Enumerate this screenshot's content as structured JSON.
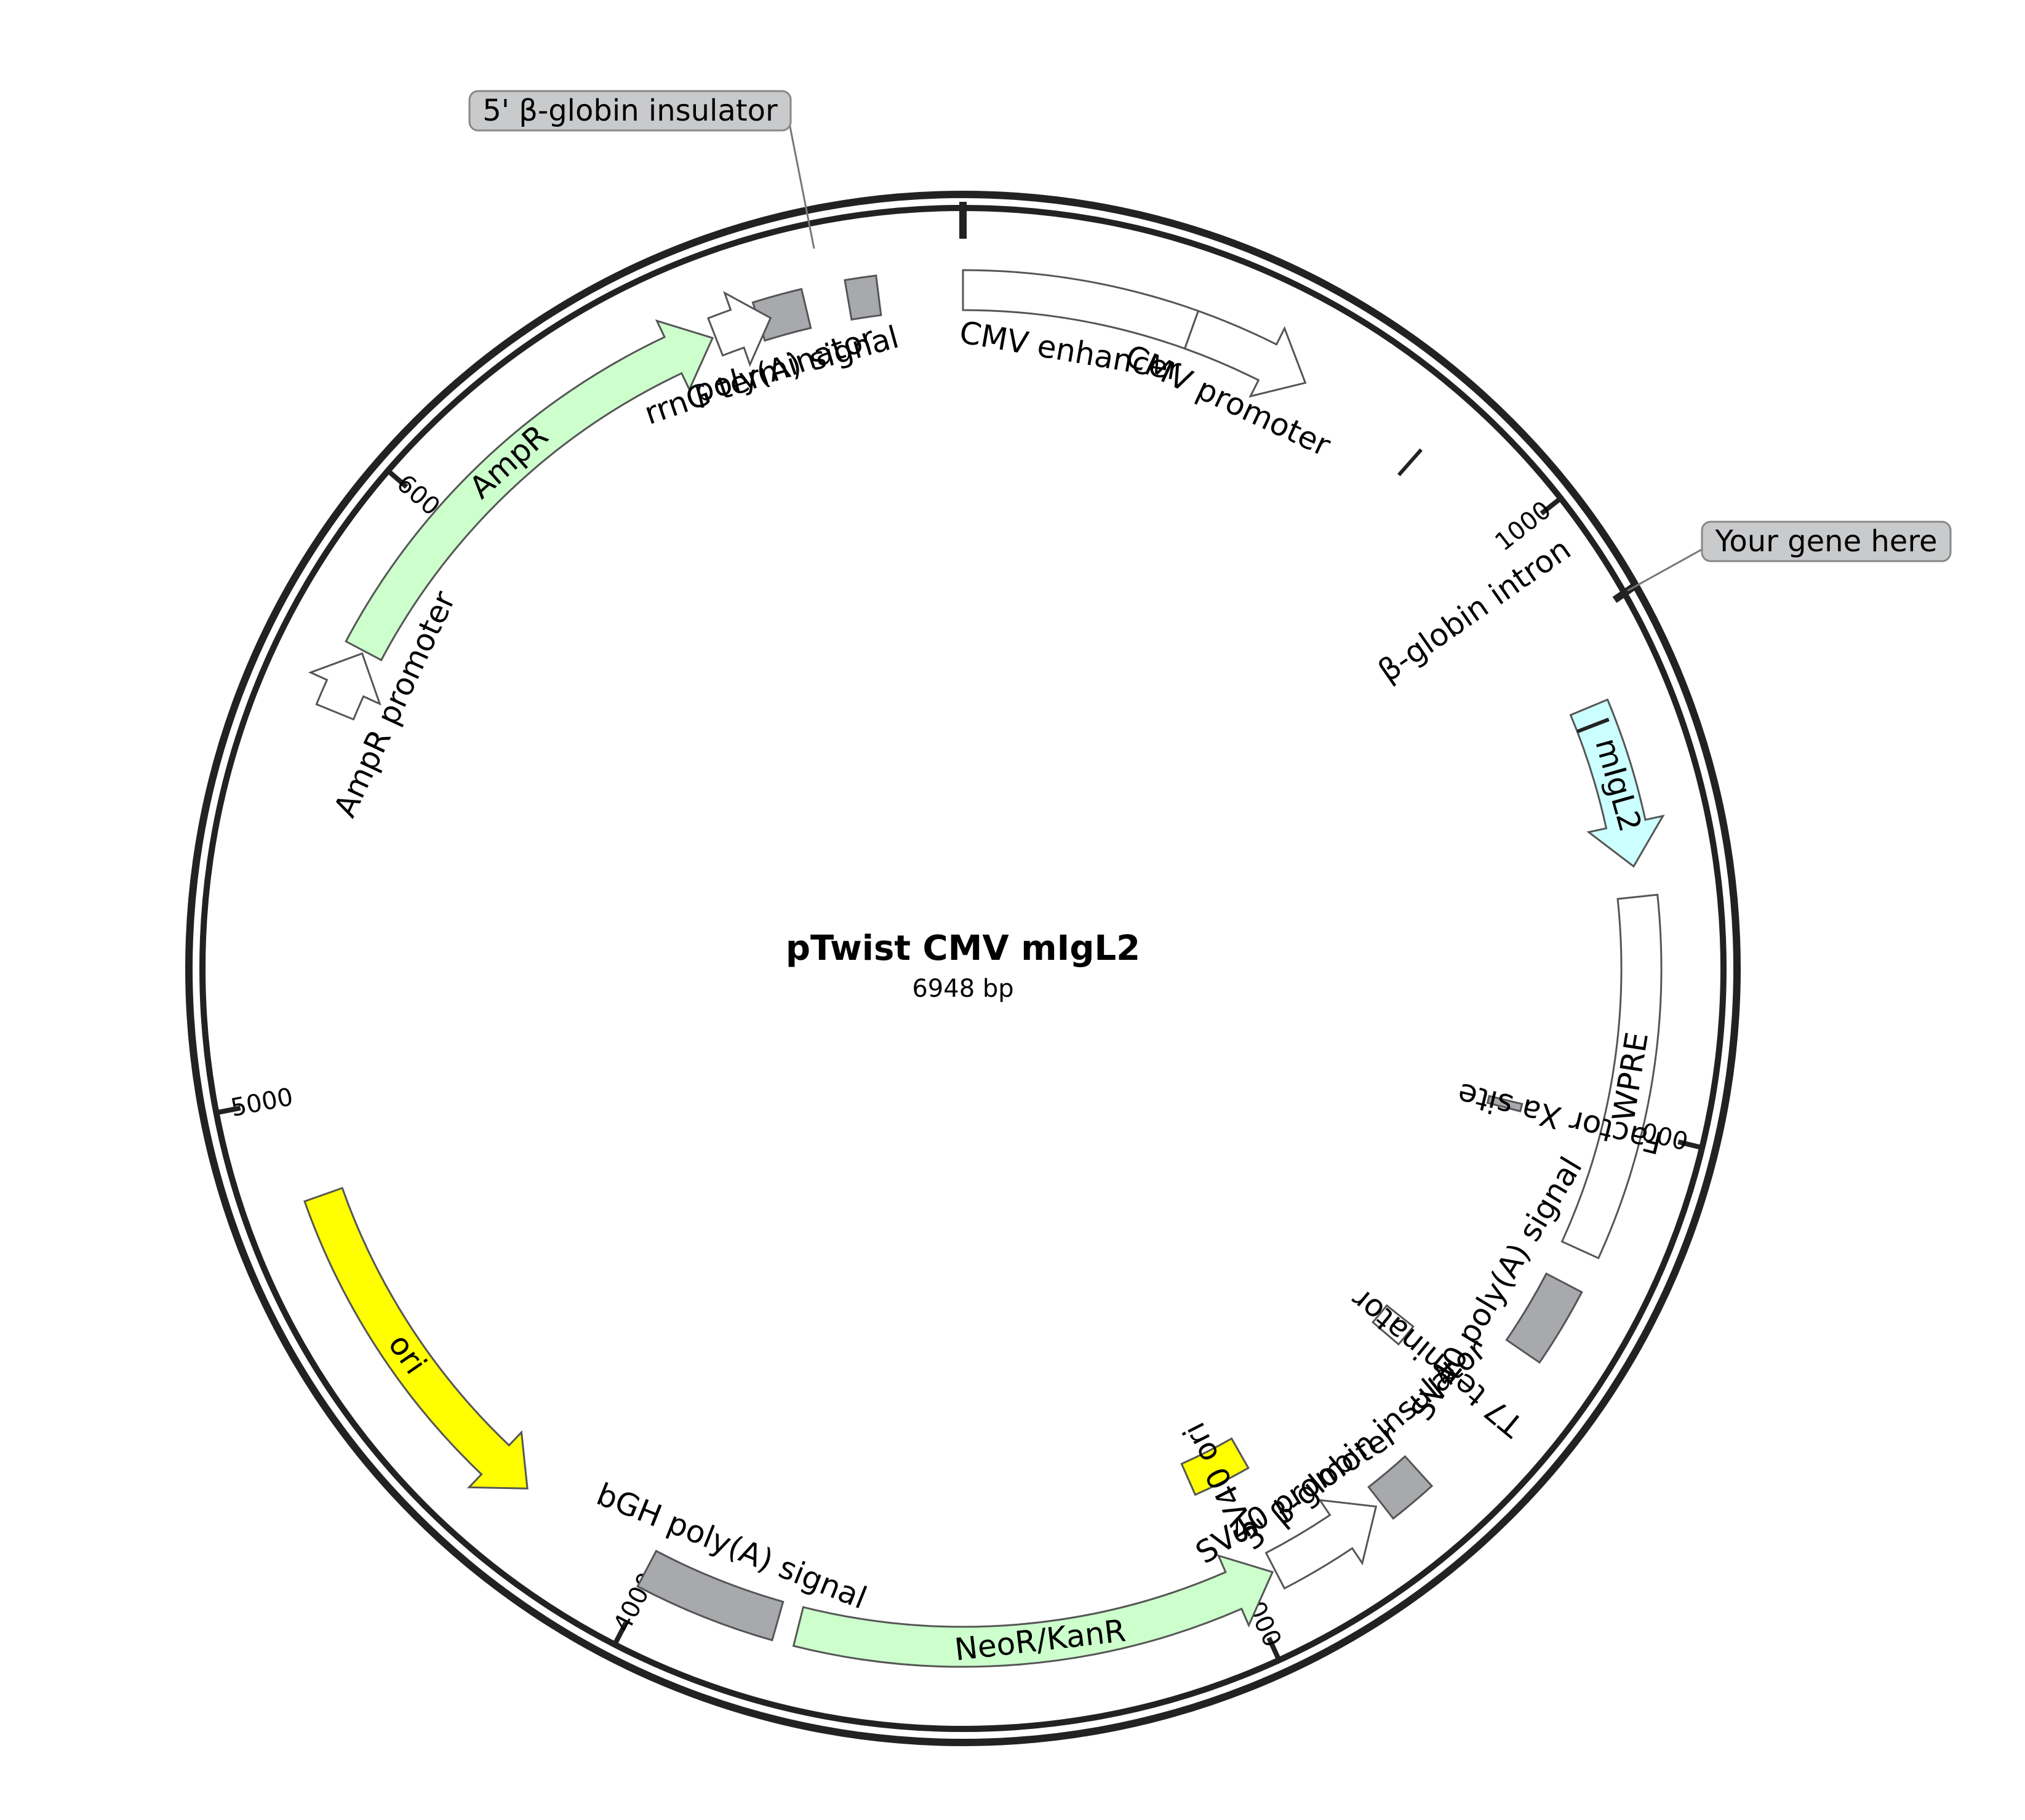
{
  "plasmid": {
    "name": "pTwist CMV mIgL2",
    "size_label": "6948 bp",
    "length": 6948
  },
  "ticks": [
    {
      "position": 1000,
      "label": "1000"
    },
    {
      "position": 2000,
      "label": "2000"
    },
    {
      "position": 3000,
      "label": "3000"
    },
    {
      "position": 4000,
      "label": "4000"
    },
    {
      "position": 5000,
      "label": "5000"
    },
    {
      "position": 6000,
      "label": "6000"
    }
  ],
  "features": [
    {
      "name": "poly(A) signal",
      "start": 6610,
      "end": 6690,
      "type": "box",
      "color": "#a7a9ac"
    },
    {
      "name": "",
      "start": 6760,
      "end": 6810,
      "type": "box",
      "color": "#a7a9ac"
    },
    {
      "name": "CMV enhancer",
      "start": 0,
      "end": 380,
      "type": "box",
      "color": "#ffffff"
    },
    {
      "name": "CMV promoter",
      "start": 380,
      "end": 585,
      "type": "arrow",
      "color": "#ffffff"
    },
    {
      "name": "mIgL2",
      "start": 1300,
      "end": 1570,
      "type": "arrow",
      "color": "#ccffff"
    },
    {
      "name": "WPRE",
      "start": 1620,
      "end": 2210,
      "type": "box",
      "color": "#ffffff"
    },
    {
      "name": "SV40 poly(A) signal",
      "start": 2270,
      "end": 2400,
      "type": "box",
      "color": "#a7a9ac"
    },
    {
      "name": "3' β-globin insulator",
      "start": 2660,
      "end": 2740,
      "type": "box",
      "color": "#a7a9ac"
    },
    {
      "name": "SV40 promoter",
      "start": 2750,
      "end": 2945,
      "type": "arrow-rev",
      "color": "#ffffff"
    },
    {
      "name": "NeoR/KanR",
      "start": 2950,
      "end": 3745,
      "type": "arrow-rev",
      "color": "#ccffcc"
    },
    {
      "name": "bGH poly(A) signal",
      "start": 3780,
      "end": 4010,
      "type": "box",
      "color": "#a7a9ac"
    },
    {
      "name": "ori",
      "start": 4245,
      "end": 4835,
      "type": "arrow-rev",
      "color": "#ffff00"
    },
    {
      "name": "AmpR",
      "start": 5750,
      "end": 6530,
      "type": "arrow",
      "color": "#ccffcc"
    },
    {
      "name": "AmpR promoter",
      "start": 5640,
      "end": 5745,
      "type": "arrow",
      "color": "#ffffff"
    },
    {
      "name": "rrnG terminator",
      "start": 6535,
      "end": 6630,
      "type": "arrow",
      "color": "#ffffff"
    }
  ],
  "inner_features": [
    {
      "name": "SV40 ori",
      "start": 2900,
      "end": 3010,
      "color": "#ffff00"
    },
    {
      "name": "Factor Xa site",
      "start": 2000,
      "end": 2010,
      "color": "#a7a9ac"
    },
    {
      "name": "T7 terminator",
      "start": 2480,
      "end": 2520,
      "color": "#ffffff"
    }
  ],
  "markers": [
    {
      "name": "β-globin intron",
      "start": 800,
      "end": 1330
    }
  ],
  "callouts": [
    {
      "label": "5' β-globin insulator"
    },
    {
      "label": "Your gene here"
    }
  ]
}
